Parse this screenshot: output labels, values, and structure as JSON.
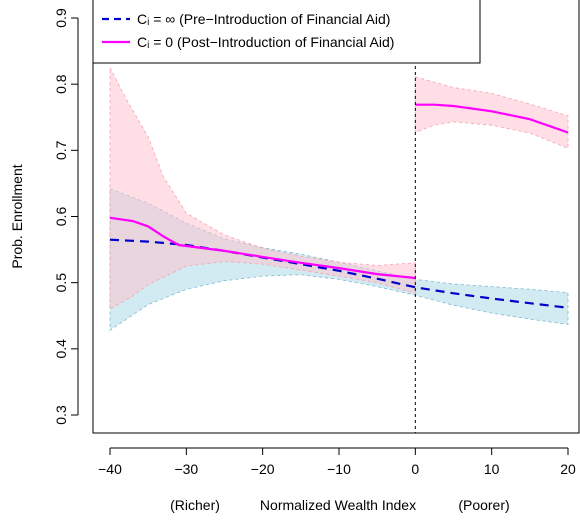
{
  "chart_data": {
    "type": "line",
    "xlabel": "Normalized Wealth Index",
    "xlabel_left_note": "(Richer)",
    "xlabel_right_note": "(Poorer)",
    "ylabel": "Prob. Enrollment",
    "xlim": [
      -40,
      20
    ],
    "ylim": [
      0.3,
      0.9
    ],
    "x_ticks": [
      -40,
      -30,
      -20,
      -10,
      0,
      10,
      20
    ],
    "x_tick_labels": [
      "−40",
      "−30",
      "−20",
      "−10",
      "0",
      "10",
      "20"
    ],
    "y_ticks": [
      0.3,
      0.4,
      0.5,
      0.6,
      0.7,
      0.8,
      0.9
    ],
    "y_tick_labels": [
      "0.3",
      "0.4",
      "0.5",
      "0.6",
      "0.7",
      "0.8",
      "0.9"
    ],
    "cutoff_x": 0,
    "grid": false,
    "legend_position": "top-center",
    "series": [
      {
        "name": "Cᵢ = ∞ (Pre−Introduction of Financial Aid)",
        "color": "#0000cc",
        "style": "dashed",
        "band_color": "#add8e6",
        "points": [
          [
            -40,
            0.565
          ],
          [
            -35,
            0.562
          ],
          [
            -30,
            0.557
          ],
          [
            -25,
            0.548
          ],
          [
            -20,
            0.538
          ],
          [
            -15,
            0.528
          ],
          [
            -10,
            0.518
          ],
          [
            -5,
            0.506
          ],
          [
            0,
            0.493
          ],
          [
            5,
            0.484
          ],
          [
            10,
            0.476
          ],
          [
            15,
            0.469
          ],
          [
            20,
            0.462
          ]
        ],
        "lower": [
          [
            -40,
            0.428
          ],
          [
            -35,
            0.467
          ],
          [
            -30,
            0.49
          ],
          [
            -25,
            0.503
          ],
          [
            -20,
            0.51
          ],
          [
            -15,
            0.512
          ],
          [
            -10,
            0.505
          ],
          [
            -5,
            0.494
          ],
          [
            0,
            0.481
          ],
          [
            5,
            0.466
          ],
          [
            10,
            0.454
          ],
          [
            15,
            0.445
          ],
          [
            20,
            0.437
          ]
        ],
        "upper": [
          [
            -40,
            0.642
          ],
          [
            -35,
            0.62
          ],
          [
            -30,
            0.59
          ],
          [
            -25,
            0.566
          ],
          [
            -20,
            0.553
          ],
          [
            -15,
            0.543
          ],
          [
            -10,
            0.531
          ],
          [
            -5,
            0.518
          ],
          [
            0,
            0.505
          ],
          [
            5,
            0.498
          ],
          [
            10,
            0.494
          ],
          [
            15,
            0.49
          ],
          [
            20,
            0.485
          ]
        ]
      },
      {
        "name": "Cᵢ = 0  (Post−Introduction of Financial Aid)",
        "color": "#ff00ff",
        "style": "solid",
        "band_color": "#ffc0cb",
        "segments": [
          [
            [
              -40,
              0.598
            ],
            [
              -37,
              0.593
            ],
            [
              -35,
              0.585
            ],
            [
              -33,
              0.57
            ],
            [
              -31,
              0.557
            ],
            [
              -25,
              0.548
            ],
            [
              -20,
              0.539
            ],
            [
              -15,
              0.53
            ],
            [
              -10,
              0.522
            ],
            [
              -5,
              0.513
            ],
            [
              0,
              0.507
            ]
          ],
          [
            [
              0,
              0.769
            ],
            [
              2.5,
              0.769
            ],
            [
              5,
              0.767
            ],
            [
              10,
              0.759
            ],
            [
              15,
              0.747
            ],
            [
              20,
              0.727
            ]
          ]
        ],
        "band_segments": [
          {
            "lower": [
              [
                -40,
                0.46
              ],
              [
                -37,
                0.48
              ],
              [
                -35,
                0.497
              ],
              [
                -30,
                0.525
              ],
              [
                -25,
                0.532
              ],
              [
                -20,
                0.528
              ],
              [
                -15,
                0.519
              ],
              [
                -10,
                0.51
              ],
              [
                -5,
                0.5
              ],
              [
                0,
                0.484
              ]
            ],
            "upper": [
              [
                -40,
                0.825
              ],
              [
                -38,
                0.78
              ],
              [
                -35,
                0.72
              ],
              [
                -33,
                0.66
              ],
              [
                -30,
                0.605
              ],
              [
                -25,
                0.572
              ],
              [
                -20,
                0.552
              ],
              [
                -15,
                0.54
              ],
              [
                -10,
                0.531
              ],
              [
                -5,
                0.526
              ],
              [
                0,
                0.53
              ]
            ]
          },
          {
            "lower": [
              [
                0,
                0.727
              ],
              [
                2.5,
                0.738
              ],
              [
                5,
                0.743
              ],
              [
                10,
                0.738
              ],
              [
                15,
                0.726
              ],
              [
                20,
                0.703
              ]
            ],
            "upper": [
              [
                0,
                0.811
              ],
              [
                2.5,
                0.803
              ],
              [
                5,
                0.795
              ],
              [
                10,
                0.786
              ],
              [
                15,
                0.77
              ],
              [
                20,
                0.752
              ]
            ]
          }
        ]
      }
    ]
  }
}
